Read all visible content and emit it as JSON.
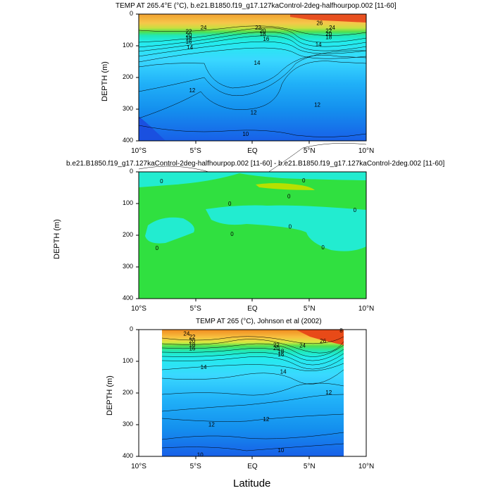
{
  "chart_data": [
    {
      "type": "contour",
      "title": "TEMP AT 265.4°E (°C), b.e21.B1850.f19_g17.127kaControl-2deg-halfhourpop.002 [11-60]",
      "ylabel": "DEPTH (m)",
      "xlabel": "",
      "xlim": [
        -10,
        10
      ],
      "ylim": [
        400,
        0
      ],
      "x_ticks": [
        "10°S",
        "5°S",
        "EQ",
        "5°N",
        "10°N"
      ],
      "y_ticks": [
        "0",
        "100",
        "200",
        "300",
        "400"
      ],
      "contour_labels": [
        {
          "text": "24",
          "x": -4.3,
          "y": 42
        },
        {
          "text": "22",
          "x": -5.6,
          "y": 54
        },
        {
          "text": "20",
          "x": -5.6,
          "y": 65
        },
        {
          "text": "18",
          "x": -5.6,
          "y": 76
        },
        {
          "text": "16",
          "x": -5.6,
          "y": 87
        },
        {
          "text": "14",
          "x": -5.5,
          "y": 104
        },
        {
          "text": "22",
          "x": 0.5,
          "y": 42
        },
        {
          "text": "20",
          "x": 0.9,
          "y": 52
        },
        {
          "text": "18",
          "x": 0.9,
          "y": 62
        },
        {
          "text": "16",
          "x": 1.2,
          "y": 78
        },
        {
          "text": "14",
          "x": 0.4,
          "y": 153
        },
        {
          "text": "12",
          "x": -5.3,
          "y": 240
        },
        {
          "text": "12",
          "x": 0.1,
          "y": 310
        },
        {
          "text": "12",
          "x": 5.7,
          "y": 285
        },
        {
          "text": "14",
          "x": 5.8,
          "y": 96
        },
        {
          "text": "26",
          "x": 5.9,
          "y": 28
        },
        {
          "text": "24",
          "x": 7,
          "y": 42
        },
        {
          "text": "22",
          "x": 6.7,
          "y": 52
        },
        {
          "text": "20",
          "x": 6.7,
          "y": 62
        },
        {
          "text": "18",
          "x": 6.7,
          "y": 72
        },
        {
          "text": "10",
          "x": -0.6,
          "y": 378
        }
      ]
    },
    {
      "type": "contour",
      "title": "b.e21.B1850.f19_g17.127kaControl-2deg-halfhourpop.002 [11-60] - b.e21.B1850.f19_g17.127kaControl-2deg.002 [11-60]",
      "ylabel": "DEPTH (m)",
      "xlabel": "",
      "xlim": [
        -10,
        10
      ],
      "ylim": [
        400,
        0
      ],
      "x_ticks": [
        "10°S",
        "5°S",
        "EQ",
        "5°N",
        "10°N"
      ],
      "y_ticks": [
        "0",
        "100",
        "200",
        "300",
        "400"
      ],
      "contour_labels": [
        {
          "text": "0",
          "x": -8,
          "y": 29
        },
        {
          "text": "0",
          "x": 4.5,
          "y": 27
        },
        {
          "text": "0",
          "x": 3.2,
          "y": 77
        },
        {
          "text": "0",
          "x": -2,
          "y": 100
        },
        {
          "text": "0",
          "x": 9,
          "y": 120
        },
        {
          "text": "0",
          "x": -1.8,
          "y": 195
        },
        {
          "text": "0",
          "x": 3.3,
          "y": 172
        },
        {
          "text": "0",
          "x": 6.2,
          "y": 238
        },
        {
          "text": "0",
          "x": -8.4,
          "y": 240
        }
      ]
    },
    {
      "type": "contour",
      "title": "TEMP AT 265 (°C), Johnson et al (2002)",
      "ylabel": "DEPTH (m)",
      "xlabel": "Latitude",
      "xlim": [
        -10,
        10
      ],
      "ylim": [
        400,
        0
      ],
      "data_extent_x": [
        -8,
        8
      ],
      "x_ticks": [
        "10°S",
        "5°S",
        "EQ",
        "5°N",
        "10°N"
      ],
      "y_ticks": [
        "0",
        "100",
        "200",
        "300",
        "400"
      ],
      "contour_labels": [
        {
          "text": "24",
          "x": -5.8,
          "y": 12
        },
        {
          "text": "22",
          "x": -5.3,
          "y": 22
        },
        {
          "text": "20",
          "x": -5.3,
          "y": 35
        },
        {
          "text": "18",
          "x": -5.3,
          "y": 48
        },
        {
          "text": "16",
          "x": -5.3,
          "y": 59
        },
        {
          "text": "22",
          "x": 2.1,
          "y": 48
        },
        {
          "text": "20",
          "x": 2.1,
          "y": 58
        },
        {
          "text": "18",
          "x": 2.5,
          "y": 68
        },
        {
          "text": "16",
          "x": 2.5,
          "y": 78
        },
        {
          "text": "24",
          "x": 4.4,
          "y": 50
        },
        {
          "text": "26",
          "x": 6.2,
          "y": 36
        },
        {
          "text": "14",
          "x": -4.3,
          "y": 118
        },
        {
          "text": "14",
          "x": 2.7,
          "y": 132
        },
        {
          "text": "12",
          "x": 6.7,
          "y": 198
        },
        {
          "text": "12",
          "x": -3.6,
          "y": 299
        },
        {
          "text": "12",
          "x": 1.2,
          "y": 282
        },
        {
          "text": "10",
          "x": -4.6,
          "y": 394
        },
        {
          "text": "10",
          "x": 2.5,
          "y": 380
        },
        {
          "text": "8",
          "x": 7.8,
          "y": 2
        }
      ]
    }
  ]
}
